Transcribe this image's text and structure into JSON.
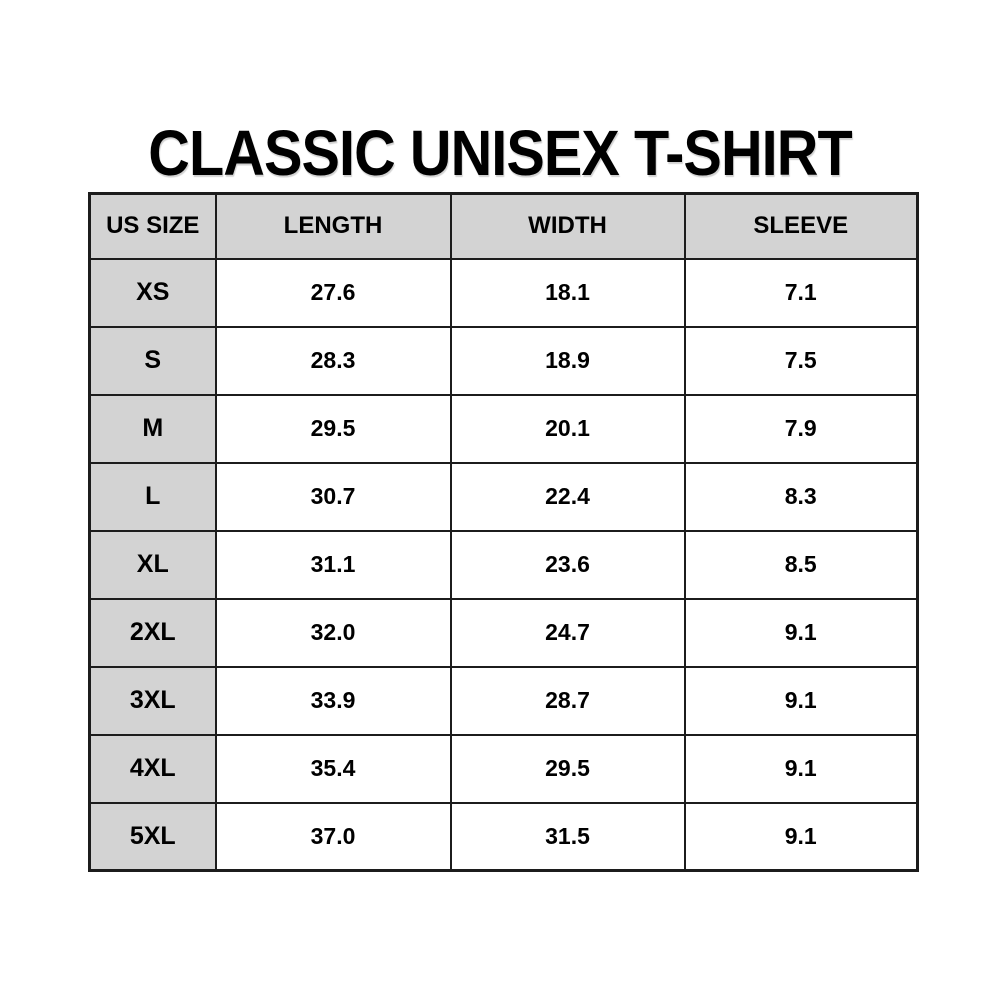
{
  "title": "CLASSIC UNISEX T-SHIRT",
  "chart_data": {
    "type": "table",
    "title": "CLASSIC UNISEX T-SHIRT",
    "columns": [
      "US SIZE",
      "LENGTH",
      "WIDTH",
      "SLEEVE"
    ],
    "rows": [
      [
        "XS",
        "27.6",
        "18.1",
        "7.1"
      ],
      [
        "S",
        "28.3",
        "18.9",
        "7.5"
      ],
      [
        "M",
        "29.5",
        "20.1",
        "7.9"
      ],
      [
        "L",
        "30.7",
        "22.4",
        "8.3"
      ],
      [
        "XL",
        "31.1",
        "23.6",
        "8.5"
      ],
      [
        "2XL",
        "32.0",
        "24.7",
        "9.1"
      ],
      [
        "3XL",
        "33.9",
        "28.7",
        "9.1"
      ],
      [
        "4XL",
        "35.4",
        "29.5",
        "9.1"
      ],
      [
        "5XL",
        "37.0",
        "31.5",
        "9.1"
      ]
    ]
  },
  "colors": {
    "header_bg": "#d3d3d3",
    "row_label_bg": "#d3d3d3",
    "border": "#1c1c1c",
    "background": "#ffffff",
    "text": "#000000"
  }
}
